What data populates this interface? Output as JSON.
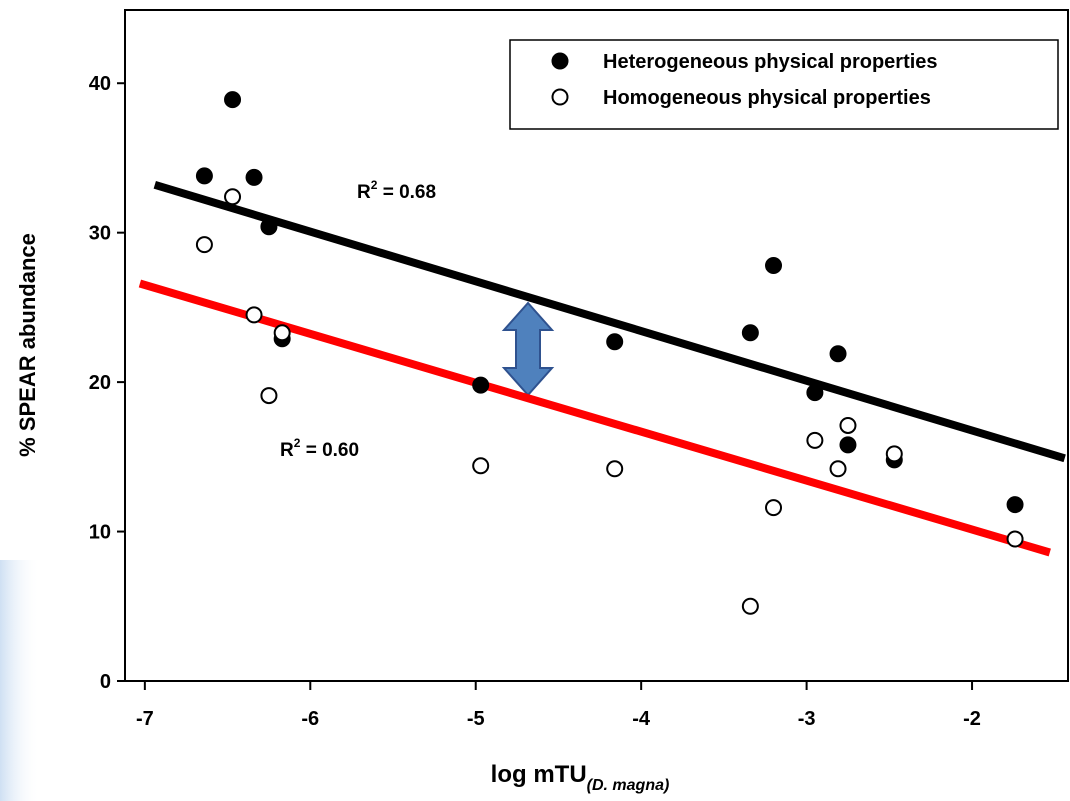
{
  "chart_data": {
    "type": "scatter",
    "xlabel": "log mTU",
    "xlabel_sub": "(D. magna)",
    "ylabel": "% SPEAR abundance",
    "xlim": [
      -7.12,
      -1.42
    ],
    "ylim": [
      0,
      44.9
    ],
    "xticks": [
      -7,
      -6,
      -5,
      -4,
      -3,
      -2
    ],
    "yticks": [
      0,
      10,
      20,
      30,
      40
    ],
    "legend": "top-right",
    "series": [
      {
        "name": "Heterogeneous physical properties",
        "color": "#000000",
        "filled": true,
        "x": [
          -6.64,
          -6.47,
          -6.34,
          -6.25,
          -6.17,
          -4.97,
          -4.16,
          -3.34,
          -3.2,
          -2.95,
          -2.81,
          -2.75,
          -2.47,
          -1.74
        ],
        "values": [
          33.8,
          38.9,
          33.7,
          30.4,
          22.9,
          19.8,
          22.7,
          23.3,
          27.8,
          19.3,
          21.9,
          15.8,
          14.8,
          11.8
        ]
      },
      {
        "name": "Homogeneous physical properties",
        "color": "#000000",
        "filled": false,
        "x": [
          -6.64,
          -6.47,
          -6.34,
          -6.17,
          -6.25,
          -4.97,
          -4.16,
          -3.34,
          -3.2,
          -2.95,
          -2.81,
          -2.75,
          -2.47,
          -1.74
        ],
        "values": [
          29.2,
          32.4,
          24.5,
          23.3,
          19.1,
          14.4,
          14.2,
          5.0,
          11.6,
          16.1,
          14.2,
          17.1,
          15.2,
          9.5
        ]
      }
    ],
    "fits": [
      {
        "color": "#000000",
        "x": [
          -6.94,
          -1.44
        ],
        "values": [
          33.2,
          14.9
        ],
        "label": {
          "text": "R",
          "sup": "2",
          "rest": " = 0.68"
        }
      },
      {
        "color": "#ff0000",
        "x": [
          -7.03,
          -1.53
        ],
        "values": [
          26.6,
          8.6
        ],
        "label": {
          "text": "R",
          "sup": "2",
          "rest": " = 0.60"
        }
      }
    ]
  }
}
